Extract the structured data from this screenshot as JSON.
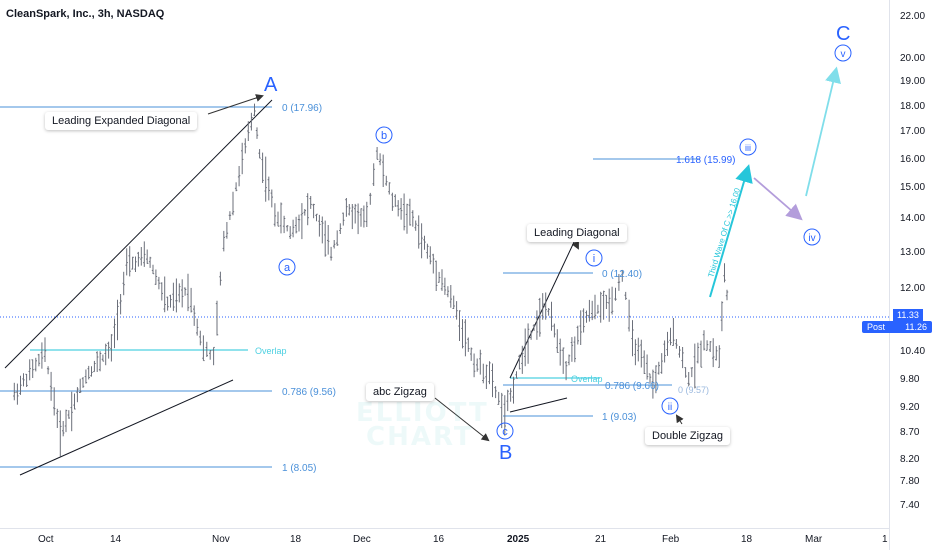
{
  "header": {
    "title": "CleanSpark, Inc., 3h, NASDAQ"
  },
  "watermark": {
    "line1": "ELLIOTT",
    "line2": "CHART"
  },
  "price_axis": {
    "ticks": [
      "22.00",
      "20.00",
      "19.00",
      "18.00",
      "17.00",
      "16.00",
      "15.00",
      "14.00",
      "13.00",
      "12.00",
      "11.33",
      "10.40",
      "9.80",
      "9.20",
      "8.70",
      "8.20",
      "7.80",
      "7.40"
    ],
    "last_price": "11.33",
    "post_label": "Post",
    "post_price": "11.26"
  },
  "time_axis": {
    "ticks": [
      "Oct",
      "14",
      "Nov",
      "18",
      "Dec",
      "16",
      "2025",
      "21",
      "Feb",
      "18",
      "Mar",
      "1"
    ]
  },
  "callouts": {
    "leading_expanded_diagonal": "Leading Expanded Diagonal",
    "abc_zigzag": "abc Zigzag",
    "leading_diagonal": "Leading Diagonal",
    "double_zigzag": "Double Zigzag"
  },
  "wave_labels": {
    "A": "A",
    "B": "B",
    "C": "C",
    "a": "a",
    "b": "b",
    "c": "c",
    "i": "i",
    "ii": "ii",
    "iii": "iii",
    "iv": "iv",
    "v": "v"
  },
  "fib_levels": {
    "A_0": "0 (17.96)",
    "A_0786": "0.786 (9.56)",
    "A_1": "1 (8.05)",
    "overlap1": "Overlap",
    "i_0": "0 (12.40)",
    "ii_0786": "0.786 (9.66)",
    "ii_0": "0 (9.57)",
    "ii_1": "1 (9.03)",
    "overlap2": "Overlap",
    "iii_1618": "1.618 (15.99)"
  },
  "annotation": {
    "third_wave": "Third Wave Of C >> 16.00"
  },
  "colors": {
    "wave_blue": "#2962ff",
    "fib_blue": "#4a90d9",
    "overlap_cyan": "#4dd0e1",
    "projection_cyan": "#26c6da",
    "projection_light": "#80deea",
    "projection_purple": "#b39ddb",
    "bar_color": "#6b6f7a"
  },
  "chart_data": {
    "type": "ohlc",
    "symbol": "CleanSpark, Inc., 3h, NASDAQ",
    "x_ticks": [
      "Oct",
      "14",
      "Nov",
      "18",
      "Dec",
      "16",
      "2025",
      "21",
      "Feb",
      "18",
      "Mar",
      "1"
    ],
    "y_ticks": [
      22.0,
      20.0,
      19.0,
      18.0,
      17.0,
      16.0,
      15.0,
      14.0,
      13.0,
      12.0,
      10.4,
      9.8,
      9.2,
      8.7,
      8.2,
      7.8,
      7.4
    ],
    "y_scale": "log",
    "waypoints": [
      {
        "x": "Sep 25",
        "y": 9.5
      },
      {
        "x": "Oct 1",
        "y": 10.4
      },
      {
        "x": "Oct 4",
        "y": 8.7
      },
      {
        "x": "Oct 9",
        "y": 9.9
      },
      {
        "x": "Oct 14",
        "y": 10.5
      },
      {
        "x": "Oct 17",
        "y": 12.6
      },
      {
        "x": "Oct 21",
        "y": 12.9
      },
      {
        "x": "Oct 25",
        "y": 11.6
      },
      {
        "x": "Oct 29",
        "y": 12.0
      },
      {
        "x": "Nov 1",
        "y": 10.5
      },
      {
        "x": "Nov 3",
        "y": 10.3
      },
      {
        "x": "Nov 5",
        "y": 13.3
      },
      {
        "x": "Nov 8",
        "y": 15.5
      },
      {
        "x": "Nov 11",
        "y": 17.9
      },
      {
        "x": "Nov 12",
        "y": 16.2
      },
      {
        "x": "Nov 15",
        "y": 14.2
      },
      {
        "x": "Nov 18",
        "y": 13.6
      },
      {
        "x": "Nov 22",
        "y": 14.5
      },
      {
        "x": "Nov 26",
        "y": 13.0
      },
      {
        "x": "Nov 29",
        "y": 14.3
      },
      {
        "x": "Dec 3",
        "y": 14.0
      },
      {
        "x": "Dec 5",
        "y": 16.3
      },
      {
        "x": "Dec 8",
        "y": 14.6
      },
      {
        "x": "Dec 12",
        "y": 14.0
      },
      {
        "x": "Dec 16",
        "y": 12.7
      },
      {
        "x": "Dec 20",
        "y": 11.6
      },
      {
        "x": "Dec 24",
        "y": 10.2
      },
      {
        "x": "Dec 27",
        "y": 9.9
      },
      {
        "x": "Dec 30",
        "y": 9.05
      },
      {
        "x": "Jan 3",
        "y": 10.6
      },
      {
        "x": "Jan 7",
        "y": 11.6
      },
      {
        "x": "Jan 11",
        "y": 10.1
      },
      {
        "x": "Jan 15",
        "y": 11.3
      },
      {
        "x": "Jan 20",
        "y": 11.7
      },
      {
        "x": "Jan 22",
        "y": 12.4
      },
      {
        "x": "Jan 24",
        "y": 10.7
      },
      {
        "x": "Jan 28",
        "y": 9.7
      },
      {
        "x": "Feb 1",
        "y": 10.9
      },
      {
        "x": "Feb 4",
        "y": 9.8
      },
      {
        "x": "Feb 7",
        "y": 10.7
      },
      {
        "x": "Feb 10",
        "y": 10.3
      },
      {
        "x": "Feb 11",
        "y": 12.4
      },
      {
        "x": "Feb 12",
        "y": 11.3
      }
    ],
    "fib_levels_A": [
      {
        "label": "0 (17.96)",
        "value": 17.96
      },
      {
        "label": "0.786 (9.56)",
        "value": 9.56
      },
      {
        "label": "1 (8.05)",
        "value": 8.05
      }
    ],
    "fib_levels_ii": [
      {
        "label": "0 (12.40)",
        "value": 12.4
      },
      {
        "label": "0.786 (9.66)",
        "value": 9.66
      },
      {
        "label": "0 (9.57)",
        "value": 9.57
      },
      {
        "label": "1 (9.03)",
        "value": 9.03
      }
    ],
    "fib_extension": {
      "label": "1.618 (15.99)",
      "value": 15.99
    },
    "last_price": 11.33,
    "post_price": 11.26
  }
}
